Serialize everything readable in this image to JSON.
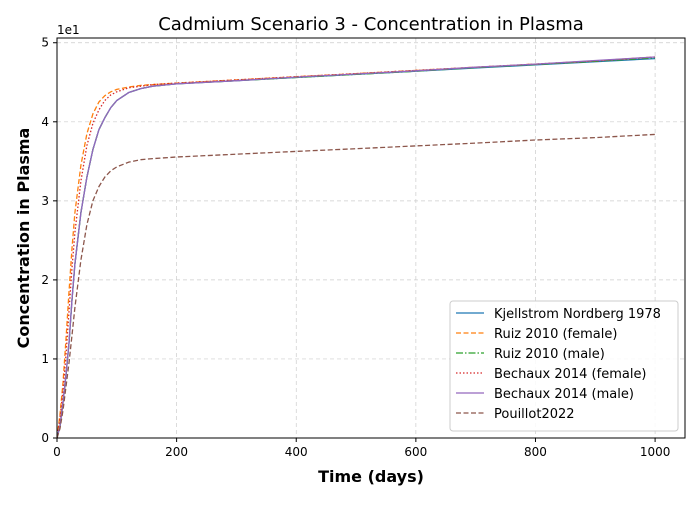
{
  "chart_data": {
    "type": "line",
    "title": "Cadmium Scenario 3 - Concentration in Plasma",
    "xlabel": "Time (days)",
    "ylabel": "Concentration in Plasma",
    "y_offset_text": "1e1",
    "xlim": [
      0,
      1050
    ],
    "ylim": [
      0,
      5.06
    ],
    "xticks": [
      0,
      200,
      400,
      600,
      800,
      1000
    ],
    "yticks": [
      0,
      1,
      2,
      3,
      4,
      5
    ],
    "grid": true,
    "legend_position": "lower-right",
    "x": [
      0,
      5,
      10,
      15,
      20,
      25,
      30,
      40,
      50,
      60,
      70,
      80,
      90,
      100,
      120,
      140,
      160,
      180,
      200,
      300,
      400,
      500,
      600,
      700,
      800,
      900,
      1000
    ],
    "series": [
      {
        "name": "Kjellstrom Nordberg 1978",
        "color": "#1f77b4",
        "style": "solid",
        "values": [
          0,
          0.15,
          0.45,
          0.8,
          1.2,
          1.75,
          2.2,
          2.85,
          3.3,
          3.65,
          3.9,
          4.05,
          4.18,
          4.27,
          4.37,
          4.42,
          4.45,
          4.465,
          4.48,
          4.52,
          4.56,
          4.6,
          4.64,
          4.68,
          4.72,
          4.76,
          4.8
        ]
      },
      {
        "name": "Ruiz 2010 (female)",
        "color": "#ff7f0e",
        "style": "dashed",
        "values": [
          0,
          0.3,
          0.7,
          1.25,
          1.85,
          2.4,
          2.85,
          3.45,
          3.85,
          4.1,
          4.25,
          4.33,
          4.38,
          4.41,
          4.44,
          4.46,
          4.47,
          4.48,
          4.49,
          4.53,
          4.57,
          4.61,
          4.65,
          4.69,
          4.73,
          4.77,
          4.82
        ]
      },
      {
        "name": "Ruiz 2010 (male)",
        "color": "#2ca02c",
        "style": "dashdot",
        "values": [
          0,
          0.15,
          0.45,
          0.8,
          1.2,
          1.75,
          2.2,
          2.85,
          3.3,
          3.65,
          3.9,
          4.05,
          4.18,
          4.27,
          4.37,
          4.42,
          4.45,
          4.465,
          4.48,
          4.52,
          4.56,
          4.6,
          4.64,
          4.685,
          4.725,
          4.765,
          4.81
        ]
      },
      {
        "name": "Bechaux 2014 (female)",
        "color": "#d62728",
        "style": "dotted",
        "values": [
          0,
          0.25,
          0.6,
          1.05,
          1.6,
          2.15,
          2.6,
          3.25,
          3.7,
          3.98,
          4.15,
          4.27,
          4.34,
          4.38,
          4.43,
          4.45,
          4.47,
          4.48,
          4.49,
          4.53,
          4.57,
          4.61,
          4.65,
          4.69,
          4.73,
          4.77,
          4.82
        ]
      },
      {
        "name": "Bechaux 2014 (male)",
        "color": "#9467bd",
        "style": "solid",
        "values": [
          0,
          0.15,
          0.45,
          0.8,
          1.2,
          1.75,
          2.2,
          2.85,
          3.3,
          3.65,
          3.9,
          4.05,
          4.18,
          4.27,
          4.37,
          4.42,
          4.45,
          4.465,
          4.48,
          4.52,
          4.565,
          4.605,
          4.645,
          4.69,
          4.73,
          4.775,
          4.82
        ]
      },
      {
        "name": "Pouillot2022",
        "color": "#8c564b",
        "style": "dashed",
        "values": [
          0,
          0.12,
          0.35,
          0.65,
          0.95,
          1.3,
          1.65,
          2.25,
          2.7,
          3.0,
          3.18,
          3.3,
          3.38,
          3.43,
          3.49,
          3.52,
          3.535,
          3.545,
          3.555,
          3.59,
          3.625,
          3.66,
          3.695,
          3.73,
          3.77,
          3.8,
          3.84
        ]
      }
    ]
  }
}
